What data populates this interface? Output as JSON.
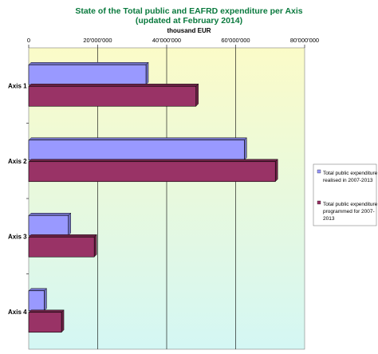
{
  "chart_data": {
    "type": "bar",
    "orientation": "horizontal",
    "title_lines": [
      "State of the Total public and EAFRD expenditure per Axis",
      "(updated at February 2014)"
    ],
    "unit_label": "thousand EUR",
    "categories": [
      "Axis 1",
      "Axis 2",
      "Axis 3",
      "Axis 4"
    ],
    "series": [
      {
        "name_lines": [
          "Total public expenditure",
          "realised in 2007-2013"
        ],
        "color": "#9999ff",
        "values": [
          34000000,
          62500000,
          11500000,
          4500000
        ]
      },
      {
        "name_lines": [
          "Total public expenditure",
          "programmed for 2007-",
          "2013"
        ],
        "color": "#993366",
        "values": [
          48500000,
          71500000,
          19000000,
          9500000
        ]
      }
    ],
    "xlim": [
      0,
      80000000
    ],
    "x_ticks": [
      {
        "value": 0,
        "label": "0"
      },
      {
        "value": 20000000,
        "label": "20'000'000"
      },
      {
        "value": 40000000,
        "label": "40'000'000"
      },
      {
        "value": 60000000,
        "label": "60'000'000"
      },
      {
        "value": 80000000,
        "label": "80'000'000"
      }
    ],
    "x_axis_position": "top",
    "grid": true,
    "legend_position": "right",
    "background_gradient": [
      "#fbfbc8",
      "#d4f7f4"
    ]
  }
}
